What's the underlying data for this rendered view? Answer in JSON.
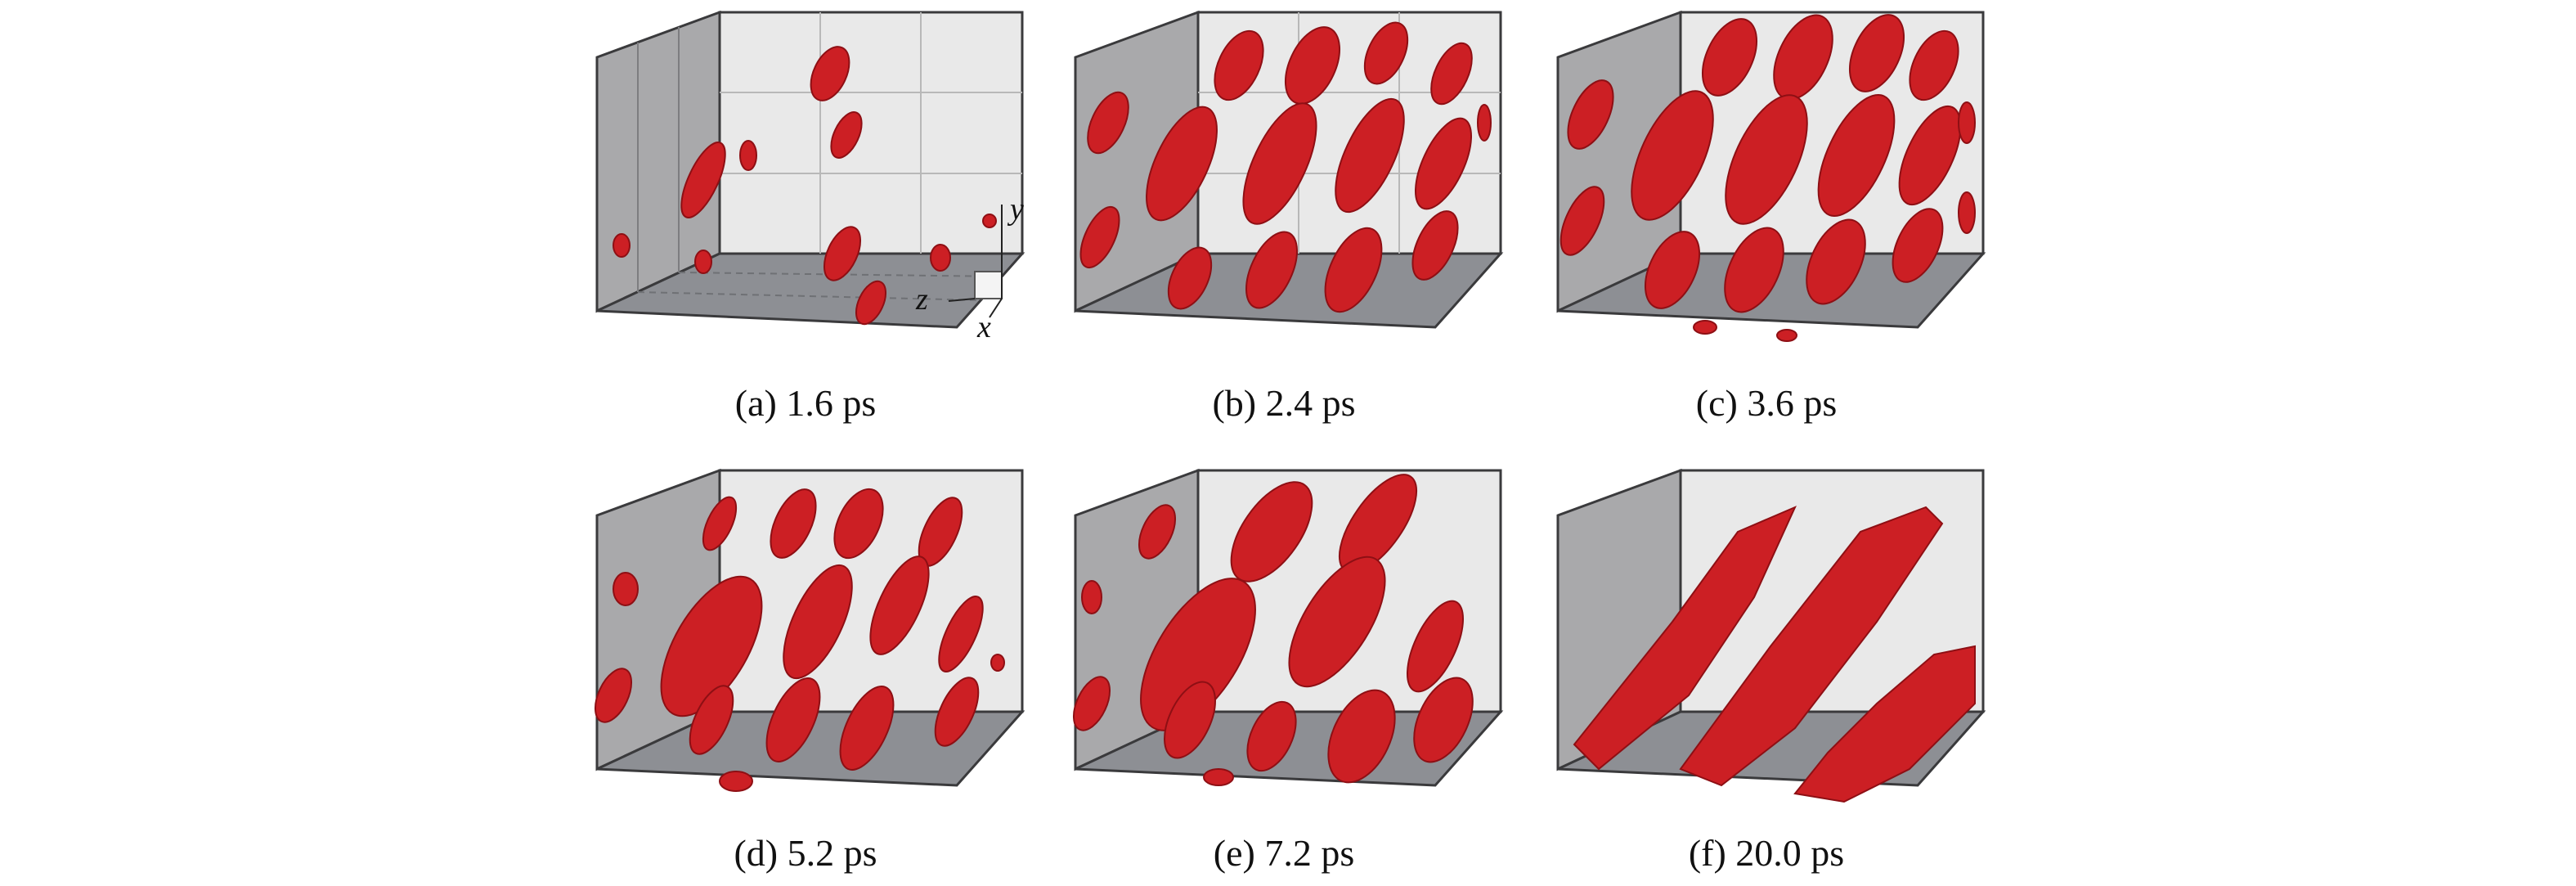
{
  "figure": {
    "panels": [
      {
        "caption": "(a) 1.6 ps",
        "blob_color": "#cc1f24"
      },
      {
        "caption": "(b) 2.4 ps",
        "blob_color": "#cc1f24"
      },
      {
        "caption": "(c) 3.6 ps",
        "blob_color": "#cc1f24"
      },
      {
        "caption": "(d) 5.2 ps",
        "blob_color": "#cc1f24"
      },
      {
        "caption": "(e) 7.2 ps",
        "blob_color": "#cc1f24"
      },
      {
        "caption": "(f) 20.0 ps",
        "blob_color": "#cc1f24"
      }
    ],
    "axes": {
      "x": "x",
      "y": "y",
      "z": "z"
    },
    "colors": {
      "back_wall": "#e9e9e9",
      "side_wall": "#a9a9ab",
      "floor": "#8d8f94",
      "frame": "#3a3a3c",
      "grid": "#b8b8b8",
      "blob": "#cc1f24",
      "blob_dark": "#8e0f14"
    }
  }
}
